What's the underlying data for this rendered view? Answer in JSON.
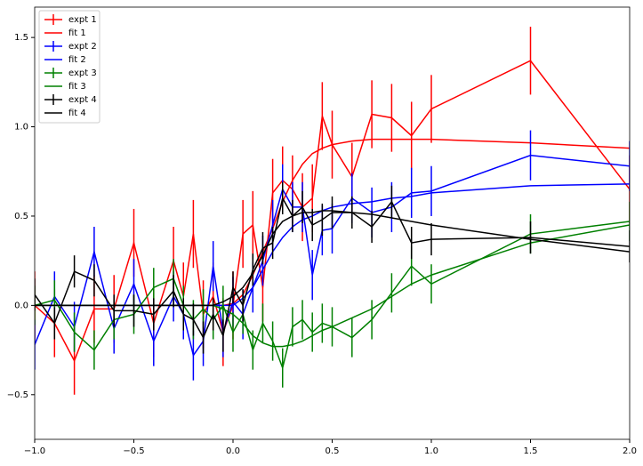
{
  "chart_data": {
    "type": "errorbar-line",
    "x": [
      -1,
      -0.9,
      -0.8,
      -0.7,
      -0.6,
      -0.5,
      -0.4,
      -0.3,
      -0.25,
      -0.2,
      -0.15,
      -0.1,
      -0.05,
      0,
      0.05,
      0.1,
      0.15,
      0.2,
      0.25,
      0.3,
      0.35,
      0.4,
      0.45,
      0.5,
      0.6,
      0.7,
      0.8,
      0.9,
      1.0,
      1.5,
      2.0
    ],
    "series": [
      {
        "name": "expt 1",
        "color": "#ff0000",
        "error": 0.19,
        "values": [
          0.0,
          -0.1,
          -0.31,
          -0.02,
          -0.02,
          0.35,
          -0.1,
          0.25,
          0.05,
          0.4,
          -0.05,
          0.05,
          -0.15,
          0.0,
          0.4,
          0.45,
          0.1,
          0.63,
          0.7,
          0.65,
          0.55,
          0.6,
          1.06,
          0.9,
          0.72,
          1.07,
          1.05,
          0.95,
          1.1,
          1.37,
          0.65
        ]
      },
      {
        "name": "fit 1",
        "color": "#ff0000",
        "values": [
          0,
          0,
          0,
          0,
          0,
          0,
          0,
          0,
          0,
          0,
          0,
          0,
          0,
          0.01,
          0.06,
          0.17,
          0.3,
          0.43,
          0.58,
          0.7,
          0.79,
          0.85,
          0.88,
          0.9,
          0.92,
          0.93,
          0.93,
          0.93,
          0.93,
          0.91,
          0.88
        ]
      },
      {
        "name": "expt 2",
        "color": "#0000ff",
        "error": 0.14,
        "values": [
          -0.22,
          0.05,
          -0.12,
          0.3,
          -0.13,
          0.12,
          -0.2,
          0.05,
          -0.05,
          -0.28,
          -0.2,
          0.22,
          -0.15,
          0.02,
          -0.05,
          0.1,
          0.25,
          0.45,
          0.65,
          0.55,
          0.55,
          0.17,
          0.42,
          0.43,
          0.6,
          0.52,
          0.55,
          0.63,
          0.64,
          0.84,
          0.78
        ]
      },
      {
        "name": "fit 2",
        "color": "#0000ff",
        "values": [
          0,
          0,
          0,
          0,
          0,
          0,
          0,
          0,
          0,
          0,
          0,
          0,
          0,
          0.0,
          0.04,
          0.1,
          0.2,
          0.3,
          0.38,
          0.44,
          0.48,
          0.5,
          0.53,
          0.55,
          0.57,
          0.58,
          0.6,
          0.61,
          0.63,
          0.67,
          0.68
        ]
      },
      {
        "name": "expt 3",
        "color": "#008000",
        "error": 0.11,
        "values": [
          0.0,
          0.03,
          -0.15,
          -0.25,
          -0.08,
          -0.05,
          0.1,
          0.15,
          0.0,
          -0.08,
          -0.02,
          -0.08,
          0.0,
          -0.15,
          -0.05,
          -0.25,
          -0.1,
          -0.2,
          -0.35,
          -0.12,
          -0.08,
          -0.15,
          -0.1,
          -0.12,
          -0.18,
          -0.08,
          0.07,
          0.22,
          0.12,
          0.4,
          0.47
        ]
      },
      {
        "name": "fit 3",
        "color": "#008000",
        "values": [
          0,
          0,
          0,
          0,
          0,
          0,
          0,
          0,
          0,
          0,
          0,
          0,
          -0.02,
          -0.05,
          -0.1,
          -0.17,
          -0.21,
          -0.23,
          -0.23,
          -0.22,
          -0.2,
          -0.17,
          -0.14,
          -0.12,
          -0.07,
          -0.02,
          0.05,
          0.12,
          0.17,
          0.35,
          0.45
        ]
      },
      {
        "name": "expt 4",
        "color": "#000000",
        "error": 0.09,
        "values": [
          0.06,
          -0.1,
          0.19,
          0.14,
          -0.03,
          -0.03,
          -0.05,
          0.08,
          -0.05,
          -0.08,
          -0.18,
          -0.05,
          -0.17,
          0.1,
          0.0,
          0.2,
          0.32,
          0.35,
          0.6,
          0.5,
          0.55,
          0.45,
          0.48,
          0.52,
          0.52,
          0.44,
          0.58,
          0.35,
          0.37,
          0.38,
          0.33
        ]
      },
      {
        "name": "fit 4",
        "color": "#000000",
        "values": [
          0,
          0,
          0,
          0,
          0,
          0,
          0,
          0,
          0,
          0,
          0,
          0,
          0.02,
          0.05,
          0.1,
          0.18,
          0.28,
          0.4,
          0.47,
          0.5,
          0.52,
          0.52,
          0.53,
          0.53,
          0.52,
          0.51,
          0.49,
          0.47,
          0.45,
          0.37,
          0.3
        ]
      }
    ],
    "xlim": [
      -1.0,
      2.0
    ],
    "xticks": [
      {
        "value": -1.0,
        "label": "−1.0"
      },
      {
        "value": -0.5,
        "label": "−0.5"
      },
      {
        "value": 0.0,
        "label": "0.0"
      },
      {
        "value": 0.5,
        "label": "0.5"
      },
      {
        "value": 1.0,
        "label": "1.0"
      },
      {
        "value": 1.5,
        "label": "1.5"
      },
      {
        "value": 2.0,
        "label": "2.0"
      }
    ],
    "ylim": [
      -0.75,
      1.67
    ],
    "yticks": [
      {
        "value": -0.5,
        "label": "−0.5"
      },
      {
        "value": 0.0,
        "label": "0.0"
      },
      {
        "value": 0.5,
        "label": "0.5"
      },
      {
        "value": 1.0,
        "label": "1.0"
      },
      {
        "value": 1.5,
        "label": "1.5"
      }
    ],
    "legend": "upper left"
  }
}
